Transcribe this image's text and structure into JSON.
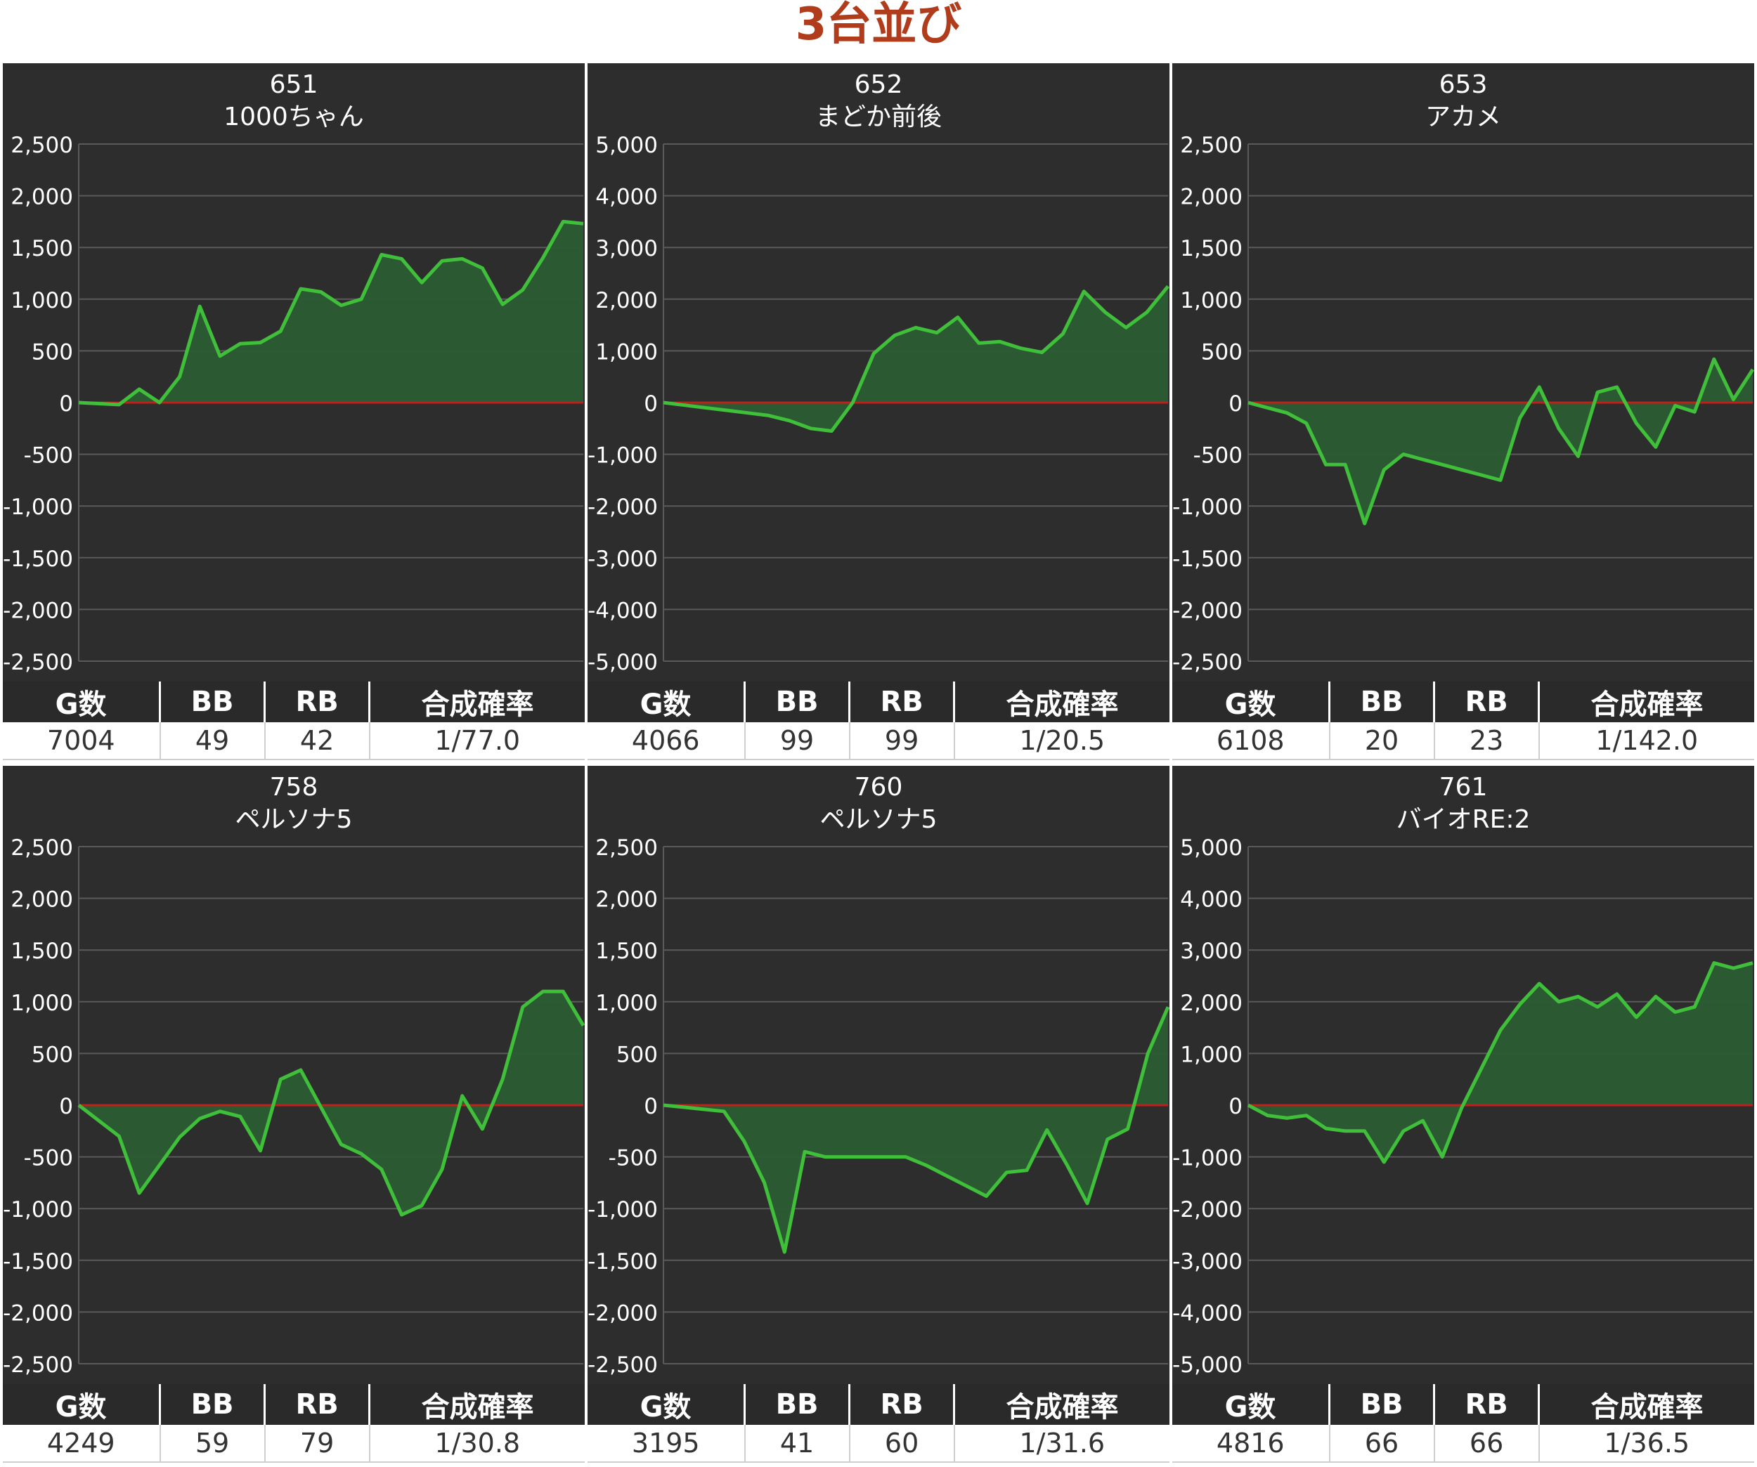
{
  "page_title": "3台並び",
  "stat_headers": [
    "G数",
    "BB",
    "RB",
    "合成確率"
  ],
  "colors": {
    "line": "#3fbf3a",
    "fill": "#2a5c33",
    "zero_line": "#c0201a",
    "panel_bg": "#2d2d2d",
    "grid": "#5a5a5a",
    "title": "#b03c1c"
  },
  "panels": [
    {
      "number": "651",
      "name": "1000ちゃん",
      "stats": {
        "games": "7004",
        "bb": "49",
        "rb": "42",
        "prob": "1/77.0"
      },
      "chart_data": {
        "type": "area",
        "ylim": [
          -2500,
          2500
        ],
        "yticks": [
          "2,500",
          "2,000",
          "1,500",
          "1,000",
          "500",
          "0",
          "-500",
          "-1,000",
          "-1,500",
          "-2,000",
          "-2,500"
        ],
        "values": [
          0,
          -10,
          -20,
          130,
          0,
          250,
          930,
          450,
          570,
          580,
          690,
          1100,
          1070,
          940,
          1000,
          1430,
          1390,
          1160,
          1370,
          1390,
          1300,
          950,
          1090,
          1400,
          1750,
          1730
        ]
      }
    },
    {
      "number": "652",
      "name": "まどか前後",
      "stats": {
        "games": "4066",
        "bb": "99",
        "rb": "99",
        "prob": "1/20.5"
      },
      "chart_data": {
        "type": "area",
        "ylim": [
          -5000,
          5000
        ],
        "yticks": [
          "5,000",
          "4,000",
          "3,000",
          "2,000",
          "1,000",
          "0",
          "-1,000",
          "-2,000",
          "-3,000",
          "-4,000",
          "-5,000"
        ],
        "values": [
          0,
          -50,
          -100,
          -150,
          -200,
          -250,
          -350,
          -500,
          -550,
          0,
          950,
          1300,
          1450,
          1350,
          1650,
          1150,
          1180,
          1050,
          970,
          1330,
          2150,
          1750,
          1450,
          1750,
          2250
        ]
      }
    },
    {
      "number": "653",
      "name": "アカメ",
      "stats": {
        "games": "6108",
        "bb": "20",
        "rb": "23",
        "prob": "1/142.0"
      },
      "chart_data": {
        "type": "area",
        "ylim": [
          -2500,
          2500
        ],
        "yticks": [
          "2,500",
          "2,000",
          "1,500",
          "1,000",
          "500",
          "0",
          "-500",
          "-1,000",
          "-1,500",
          "-2,000",
          "-2,500"
        ],
        "values": [
          0,
          -50,
          -100,
          -200,
          -600,
          -600,
          -1170,
          -650,
          -500,
          -550,
          -600,
          -650,
          -700,
          -750,
          -150,
          150,
          -250,
          -520,
          100,
          150,
          -200,
          -430,
          -30,
          -90,
          420,
          30,
          320
        ]
      }
    },
    {
      "number": "758",
      "name": "ペルソナ5",
      "stats": {
        "games": "4249",
        "bb": "59",
        "rb": "79",
        "prob": "1/30.8"
      },
      "chart_data": {
        "type": "area",
        "ylim": [
          -2500,
          2500
        ],
        "yticks": [
          "2,500",
          "2,000",
          "1,500",
          "1,000",
          "500",
          "0",
          "-500",
          "-1,000",
          "-1,500",
          "-2,000",
          "-2,500"
        ],
        "values": [
          0,
          -150,
          -300,
          -850,
          -580,
          -310,
          -130,
          -60,
          -110,
          -440,
          250,
          340,
          -20,
          -380,
          -470,
          -620,
          -1060,
          -970,
          -620,
          90,
          -230,
          250,
          950,
          1100,
          1100,
          770
        ]
      }
    },
    {
      "number": "760",
      "name": "ペルソナ5",
      "stats": {
        "games": "3195",
        "bb": "41",
        "rb": "60",
        "prob": "1/31.6"
      },
      "chart_data": {
        "type": "area",
        "ylim": [
          -2500,
          2500
        ],
        "yticks": [
          "2,500",
          "2,000",
          "1,500",
          "1,000",
          "500",
          "0",
          "-500",
          "-1,000",
          "-1,500",
          "-2,000",
          "-2,500"
        ],
        "values": [
          0,
          -20,
          -40,
          -60,
          -350,
          -750,
          -1420,
          -450,
          -500,
          -500,
          -500,
          -500,
          -500,
          -580,
          -680,
          -780,
          -880,
          -650,
          -630,
          -240,
          -580,
          -950,
          -330,
          -230,
          500,
          950
        ]
      }
    },
    {
      "number": "761",
      "name": "バイオRE:2",
      "stats": {
        "games": "4816",
        "bb": "66",
        "rb": "66",
        "prob": "1/36.5"
      },
      "chart_data": {
        "type": "area",
        "ylim": [
          -5000,
          5000
        ],
        "yticks": [
          "5,000",
          "4,000",
          "3,000",
          "2,000",
          "1,000",
          "0",
          "-1,000",
          "-2,000",
          "-3,000",
          "-4,000",
          "-5,000"
        ],
        "values": [
          0,
          -200,
          -250,
          -200,
          -450,
          -500,
          -500,
          -1100,
          -500,
          -300,
          -1000,
          -50,
          700,
          1450,
          1950,
          2350,
          2000,
          2100,
          1900,
          2150,
          1700,
          2100,
          1800,
          1900,
          2750,
          2650,
          2750
        ]
      }
    }
  ]
}
